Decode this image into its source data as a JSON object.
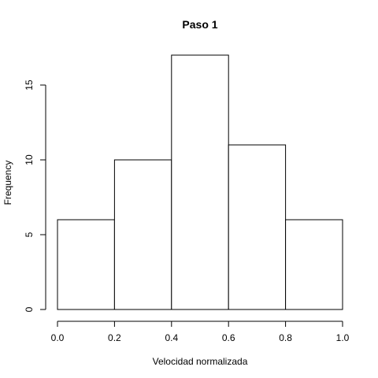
{
  "chart_data": {
    "type": "bar",
    "title": "Paso 1",
    "xlabel": "Velocidad normalizada",
    "ylabel": "Frequency",
    "bins": [
      {
        "from": 0.0,
        "to": 0.2,
        "count": 6
      },
      {
        "from": 0.2,
        "to": 0.4,
        "count": 10
      },
      {
        "from": 0.4,
        "to": 0.6,
        "count": 17
      },
      {
        "from": 0.6,
        "to": 0.8,
        "count": 11
      },
      {
        "from": 0.8,
        "to": 1.0,
        "count": 6
      }
    ],
    "xlim": [
      0,
      1
    ],
    "ylim": [
      0,
      17
    ],
    "x_ticks": [
      "0.0",
      "0.2",
      "0.4",
      "0.6",
      "0.8",
      "1.0"
    ],
    "y_ticks": [
      "0",
      "5",
      "10",
      "15"
    ],
    "grid": false,
    "legend": false
  }
}
